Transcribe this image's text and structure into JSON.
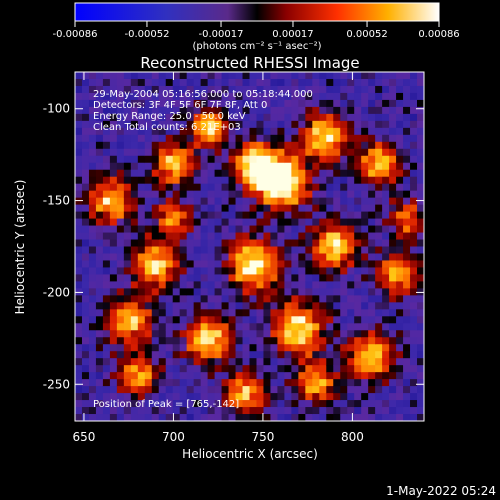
{
  "colorbar": {
    "tick_labels": [
      "-0.00086",
      "-0.00052",
      "-0.00017",
      "0.00017",
      "0.00052",
      "0.00086"
    ],
    "unit_label": "(photons cm⁻² s⁻¹ asec⁻²)",
    "range": [
      -0.00086,
      0.00086
    ]
  },
  "chart_data": {
    "type": "heatmap",
    "title": "Reconstructed RHESSI Image",
    "xlabel": "Heliocentric X (arcsec)",
    "ylabel": "Heliocentric Y (arcsec)",
    "xlim": [
      645,
      840
    ],
    "ylim": [
      -270,
      -80
    ],
    "xticks": [
      650,
      700,
      750,
      800
    ],
    "yticks": [
      -100,
      -150,
      -200,
      -250
    ],
    "peak_x": 765,
    "peak_y": -142,
    "info_lines": [
      "29-May-2004 05:16:56.000 to 05:18:44.000",
      "Detectors: 3F 4F 5F 6F 7F 8F, Att 0",
      "Energy Range: 25.0 - 50.0 keV",
      "Clean     Total counts: 6.21E+03"
    ],
    "peak_text": "Position of Peak = [765,-142]",
    "blobs": [
      [
        760,
        -140,
        10,
        1.0
      ],
      [
        745,
        -130,
        8,
        0.8
      ],
      [
        720,
        -110,
        7,
        0.75
      ],
      [
        700,
        -130,
        8,
        0.7
      ],
      [
        785,
        -115,
        9,
        0.75
      ],
      [
        815,
        -130,
        8,
        0.65
      ],
      [
        665,
        -150,
        9,
        0.65
      ],
      [
        690,
        -185,
        9,
        0.7
      ],
      [
        675,
        -215,
        9,
        0.7
      ],
      [
        745,
        -185,
        10,
        0.8
      ],
      [
        790,
        -175,
        9,
        0.75
      ],
      [
        825,
        -190,
        8,
        0.65
      ],
      [
        720,
        -225,
        9,
        0.75
      ],
      [
        770,
        -220,
        10,
        0.8
      ],
      [
        810,
        -235,
        9,
        0.7
      ],
      [
        680,
        -245,
        8,
        0.6
      ],
      [
        740,
        -255,
        8,
        0.65
      ],
      [
        830,
        -160,
        7,
        0.55
      ],
      [
        700,
        -160,
        7,
        0.55
      ],
      [
        780,
        -250,
        8,
        0.6
      ]
    ]
  },
  "timestamp": "1-May-2022 05:24"
}
